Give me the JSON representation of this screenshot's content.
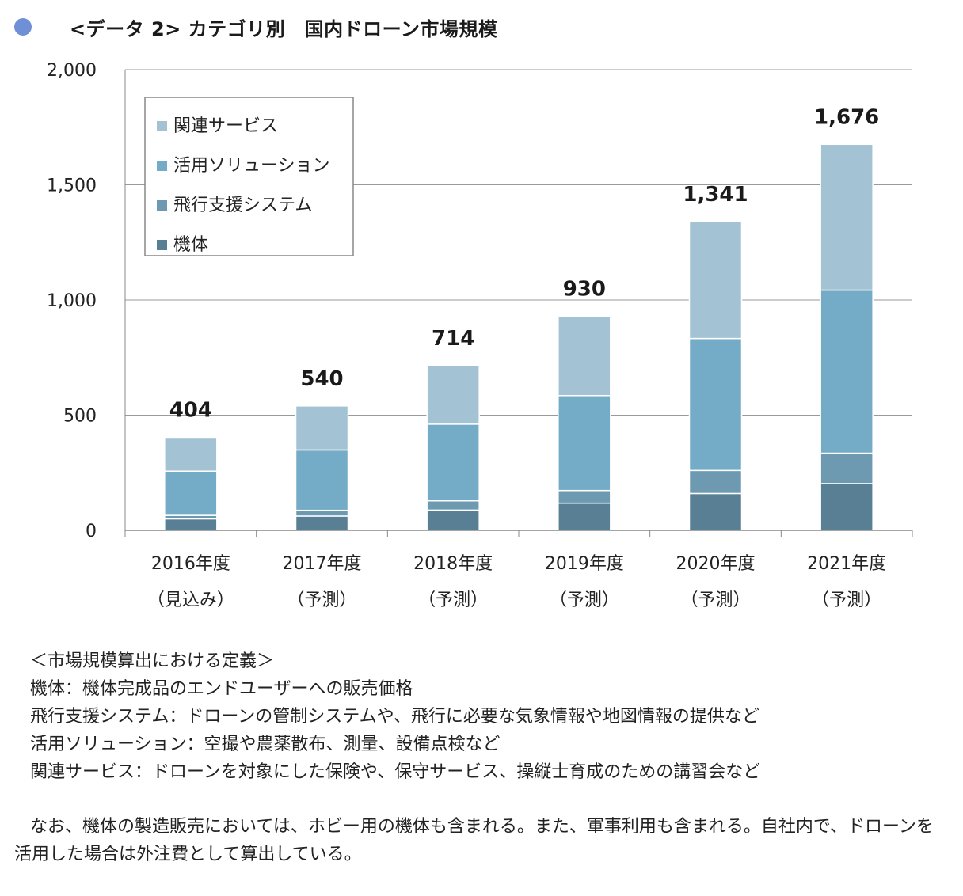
{
  "header": {
    "title": "<データ 2> カテゴリ別　国内ドローン市場規模",
    "bullet_color": "#6f8fd6"
  },
  "chart_data": {
    "type": "bar",
    "stacked": true,
    "categories": [
      "2016年度",
      "2017年度",
      "2018年度",
      "2019年度",
      "2020年度",
      "2021年度"
    ],
    "category_sublabels": [
      "（見込み）",
      "（予測）",
      "（予測）",
      "（予測）",
      "（予測）",
      "（予測）"
    ],
    "series": [
      {
        "name": "機体",
        "color": "#587f93",
        "values": [
          50,
          62,
          88,
          118,
          160,
          203
        ]
      },
      {
        "name": "飛行支援システム",
        "color": "#6d9ab1",
        "values": [
          15,
          25,
          40,
          55,
          100,
          132
        ]
      },
      {
        "name": "活用ソリューション",
        "color": "#74abc6",
        "values": [
          192,
          262,
          333,
          412,
          573,
          708
        ]
      },
      {
        "name": "関連サービス",
        "color": "#a3c2d3",
        "values": [
          147,
          191,
          253,
          345,
          508,
          633
        ]
      }
    ],
    "totals": [
      404,
      540,
      714,
      930,
      1341,
      1676
    ],
    "total_labels": [
      "404",
      "540",
      "714",
      "930",
      "1,341",
      "1,676"
    ],
    "yticks": [
      0,
      500,
      1000,
      1500,
      2000
    ],
    "ytick_labels": [
      "0",
      "500",
      "1,000",
      "1,500",
      "2,000"
    ],
    "ylim": [
      0,
      2000
    ],
    "grid": true,
    "legend_position": "top-left",
    "xlabel": "",
    "ylabel": ""
  },
  "notes": {
    "heading": "＜市場規模算出における定義＞",
    "definitions": [
      "機体：機体完成品のエンドユーザーへの販売価格",
      "飛行支援システム：ドローンの管制システムや、飛行に必要な気象情報や地図情報の提供など",
      "活用ソリューション：空撮や農薬散布、測量、設備点検など",
      "関連サービス：ドローンを対象にした保険や、保守サービス、操縦士育成のための講習会など"
    ],
    "paragraph": "なお、機体の製造販売においては、ホビー用の機体も含まれる。また、軍事利用も含まれる。自社内で、ドローンを活用した場合は外注費として算出している。"
  }
}
